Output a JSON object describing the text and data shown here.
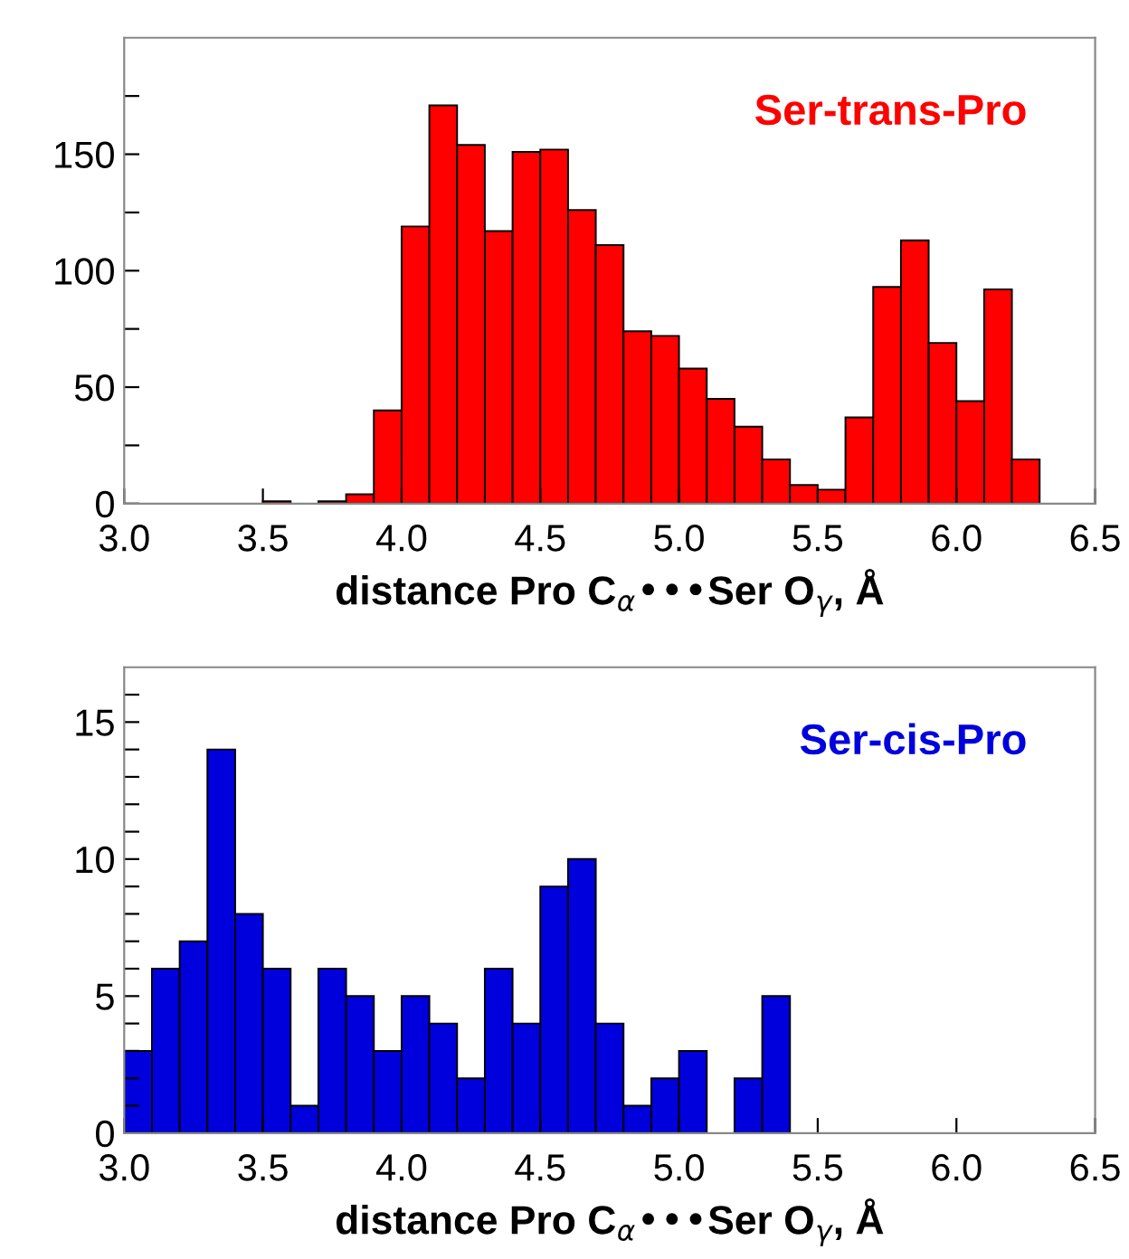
{
  "chart_data": [
    {
      "type": "histogram",
      "xlabel": "distance Pro C$_{α}$•••Ser O$_{γ}$, Å",
      "annotations": [
        "Ser-trans-Pro"
      ],
      "color": "#ff0000",
      "bins": [
        3.5,
        3.6,
        3.7,
        3.8,
        3.9,
        4.0,
        4.1,
        4.2,
        4.3,
        4.4,
        4.5,
        4.6,
        4.7,
        4.8,
        4.9,
        5.0,
        5.1,
        5.2,
        5.3,
        5.4,
        5.5,
        5.6,
        5.7,
        5.8,
        5.9,
        6.0,
        6.1,
        6.2,
        6.3
      ],
      "values": [
        1,
        0,
        1,
        4,
        40,
        119,
        171,
        154,
        117,
        151,
        152,
        126,
        111,
        74,
        72,
        58,
        45,
        33,
        19,
        8,
        6,
        37,
        93,
        113,
        69,
        44,
        92,
        19
      ],
      "xlim": [
        3.0,
        6.5
      ],
      "ylim": [
        0,
        200
      ],
      "xticks": [
        {
          "value": 3.0,
          "label": "3.0"
        },
        {
          "value": 3.5,
          "label": "3.5"
        },
        {
          "value": 4.0,
          "label": "4.0"
        },
        {
          "value": 4.5,
          "label": "4.5"
        },
        {
          "value": 5.0,
          "label": "5.0"
        },
        {
          "value": 5.5,
          "label": "5.5"
        },
        {
          "value": 6.0,
          "label": "6.0"
        },
        {
          "value": 6.5,
          "label": "6.5"
        }
      ],
      "yticks": [
        0,
        {
          "value": 25,
          "label": null
        },
        50,
        {
          "value": 75,
          "label": null
        },
        100,
        {
          "value": 125,
          "label": null
        },
        150,
        {
          "value": 175,
          "label": null
        }
      ],
      "grid": false,
      "legend": false
    },
    {
      "type": "histogram",
      "xlabel": "distance Pro C$_{α}$•••Ser O$_{γ}$, Å",
      "annotations": [
        "Ser-cis-Pro"
      ],
      "color": "#0000dd",
      "bins": [
        3.0,
        3.1,
        3.2,
        3.3,
        3.4,
        3.5,
        3.6,
        3.7,
        3.8,
        3.9,
        4.0,
        4.1,
        4.2,
        4.3,
        4.4,
        4.5,
        4.6,
        4.7,
        4.8,
        4.9,
        5.0,
        5.1,
        5.2,
        5.3,
        5.4
      ],
      "values": [
        3,
        6,
        7,
        14,
        8,
        6,
        1,
        6,
        5,
        3,
        5,
        4,
        2,
        6,
        4,
        9,
        10,
        4,
        1,
        2,
        3,
        0,
        2,
        5
      ],
      "xlim": [
        3.0,
        6.5
      ],
      "ylim": [
        0,
        17
      ],
      "xticks": [
        {
          "value": 3.0,
          "label": "3.0"
        },
        {
          "value": 3.5,
          "label": "3.5"
        },
        {
          "value": 4.0,
          "label": "4.0"
        },
        {
          "value": 4.5,
          "label": "4.5"
        },
        {
          "value": 5.0,
          "label": "5.0"
        },
        {
          "value": 5.5,
          "label": "5.5"
        },
        {
          "value": 6.0,
          "label": "6.0"
        },
        {
          "value": 6.5,
          "label": "6.5"
        }
      ],
      "yticks": [
        0,
        {
          "value": 1,
          "label": null
        },
        {
          "value": 2,
          "label": null
        },
        {
          "value": 3,
          "label": null
        },
        {
          "value": 4,
          "label": null
        },
        5,
        {
          "value": 6,
          "label": null
        },
        {
          "value": 7,
          "label": null
        },
        {
          "value": 8,
          "label": null
        },
        {
          "value": 9,
          "label": null
        },
        10,
        {
          "value": 11,
          "label": null
        },
        {
          "value": 12,
          "label": null
        },
        {
          "value": 13,
          "label": null
        },
        {
          "value": 14,
          "label": null
        },
        15,
        {
          "value": 16,
          "label": null
        }
      ],
      "grid": false,
      "legend": false
    }
  ]
}
